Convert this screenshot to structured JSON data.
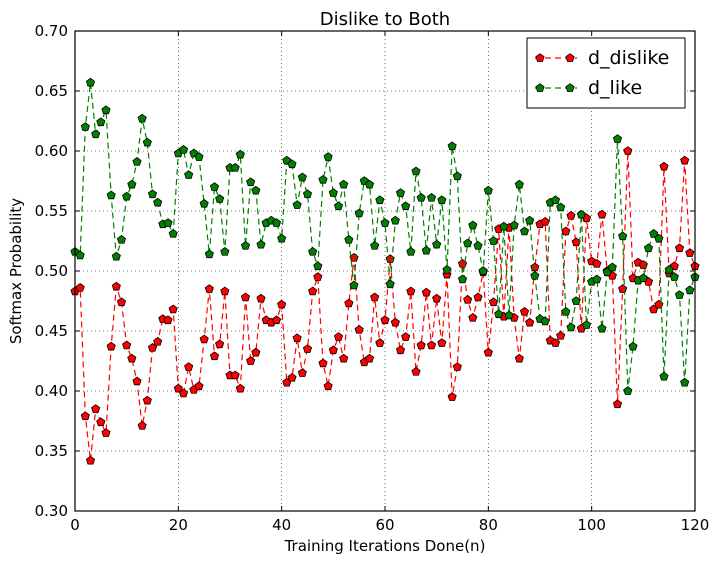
{
  "chart_data": {
    "type": "line",
    "title": "Dislike to Both",
    "xlabel": "Training Iterations Done(n)",
    "ylabel": "Softmax Probability",
    "xlim": [
      0,
      120
    ],
    "ylim": [
      0.3,
      0.7
    ],
    "xticks": [
      0,
      20,
      40,
      60,
      80,
      100,
      120
    ],
    "yticks": [
      0.3,
      0.35,
      0.4,
      0.45,
      0.5,
      0.55,
      0.6,
      0.65,
      0.7
    ],
    "xtick_labels": [
      "0",
      "20",
      "40",
      "60",
      "80",
      "100",
      "120"
    ],
    "ytick_labels": [
      "0.30",
      "0.35",
      "0.40",
      "0.45",
      "0.50",
      "0.55",
      "0.60",
      "0.65",
      "0.70"
    ],
    "grid": true,
    "legend_position": "top-right",
    "series": [
      {
        "name": "d_dislike",
        "color": "#ff0000",
        "marker": "pentagon",
        "linestyle": "dashed",
        "x": [
          0,
          1,
          2,
          3,
          4,
          5,
          6,
          7,
          8,
          9,
          10,
          11,
          12,
          13,
          14,
          15,
          16,
          17,
          18,
          19,
          20,
          21,
          22,
          23,
          24,
          25,
          26,
          27,
          28,
          29,
          30,
          31,
          32,
          33,
          34,
          35,
          36,
          37,
          38,
          39,
          40,
          41,
          42,
          43,
          44,
          45,
          46,
          47,
          48,
          49,
          50,
          51,
          52,
          53,
          54,
          55,
          56,
          57,
          58,
          59,
          60,
          61,
          62,
          63,
          64,
          65,
          66,
          67,
          68,
          69,
          70,
          71,
          72,
          73,
          74,
          75,
          76,
          77,
          78,
          79,
          80,
          81,
          82,
          83,
          84,
          85,
          86,
          87,
          88,
          89,
          90,
          91,
          92,
          93,
          94,
          95,
          96,
          97,
          98,
          99,
          100,
          101,
          102,
          103,
          104,
          105,
          106,
          107,
          108,
          109,
          110,
          111,
          112,
          113,
          114,
          115,
          116,
          117,
          118,
          119,
          120
        ],
        "values": [
          0.483,
          0.486,
          0.379,
          0.342,
          0.385,
          0.374,
          0.365,
          0.437,
          0.487,
          0.474,
          0.438,
          0.427,
          0.408,
          0.371,
          0.392,
          0.436,
          0.441,
          0.46,
          0.459,
          0.468,
          0.402,
          0.398,
          0.42,
          0.401,
          0.404,
          0.443,
          0.485,
          0.429,
          0.439,
          0.483,
          0.413,
          0.413,
          0.402,
          0.478,
          0.425,
          0.432,
          0.477,
          0.459,
          0.457,
          0.459,
          0.472,
          0.407,
          0.411,
          0.444,
          0.415,
          0.435,
          0.483,
          0.495,
          0.423,
          0.404,
          0.434,
          0.445,
          0.427,
          0.473,
          0.511,
          0.451,
          0.424,
          0.427,
          0.478,
          0.44,
          0.459,
          0.51,
          0.457,
          0.434,
          0.445,
          0.483,
          0.416,
          0.438,
          0.482,
          0.438,
          0.477,
          0.44,
          0.497,
          0.395,
          0.42,
          0.506,
          0.476,
          0.461,
          0.478,
          0.499,
          0.432,
          0.474,
          0.535,
          0.462,
          0.536,
          0.461,
          0.427,
          0.466,
          0.457,
          0.503,
          0.539,
          0.541,
          0.442,
          0.44,
          0.446,
          0.533,
          0.546,
          0.524,
          0.452,
          0.544,
          0.508,
          0.506,
          0.547,
          0.5,
          0.496,
          0.389,
          0.485,
          0.6,
          0.494,
          0.507,
          0.505,
          0.491,
          0.468,
          0.472,
          0.587,
          0.498,
          0.504,
          0.519,
          0.592,
          0.515,
          0.504
        ]
      },
      {
        "name": "d_like",
        "color": "#008000",
        "marker": "pentagon",
        "linestyle": "dashed",
        "x": [
          0,
          1,
          2,
          3,
          4,
          5,
          6,
          7,
          8,
          9,
          10,
          11,
          12,
          13,
          14,
          15,
          16,
          17,
          18,
          19,
          20,
          21,
          22,
          23,
          24,
          25,
          26,
          27,
          28,
          29,
          30,
          31,
          32,
          33,
          34,
          35,
          36,
          37,
          38,
          39,
          40,
          41,
          42,
          43,
          44,
          45,
          46,
          47,
          48,
          49,
          50,
          51,
          52,
          53,
          54,
          55,
          56,
          57,
          58,
          59,
          60,
          61,
          62,
          63,
          64,
          65,
          66,
          67,
          68,
          69,
          70,
          71,
          72,
          73,
          74,
          75,
          76,
          77,
          78,
          79,
          80,
          81,
          82,
          83,
          84,
          85,
          86,
          87,
          88,
          89,
          90,
          91,
          92,
          93,
          94,
          95,
          96,
          97,
          98,
          99,
          100,
          101,
          102,
          103,
          104,
          105,
          106,
          107,
          108,
          109,
          110,
          111,
          112,
          113,
          114,
          115,
          116,
          117,
          118,
          119,
          120
        ],
        "values": [
          0.516,
          0.513,
          0.62,
          0.657,
          0.614,
          0.624,
          0.634,
          0.563,
          0.512,
          0.526,
          0.562,
          0.572,
          0.591,
          0.627,
          0.607,
          0.564,
          0.557,
          0.539,
          0.54,
          0.531,
          0.598,
          0.601,
          0.58,
          0.598,
          0.595,
          0.556,
          0.514,
          0.57,
          0.56,
          0.516,
          0.586,
          0.586,
          0.597,
          0.521,
          0.574,
          0.567,
          0.522,
          0.54,
          0.542,
          0.54,
          0.527,
          0.592,
          0.589,
          0.555,
          0.578,
          0.564,
          0.516,
          0.504,
          0.576,
          0.595,
          0.565,
          0.554,
          0.572,
          0.526,
          0.488,
          0.548,
          0.575,
          0.572,
          0.521,
          0.559,
          0.54,
          0.489,
          0.542,
          0.565,
          0.554,
          0.516,
          0.583,
          0.561,
          0.517,
          0.561,
          0.522,
          0.559,
          0.501,
          0.604,
          0.579,
          0.493,
          0.523,
          0.538,
          0.521,
          0.5,
          0.567,
          0.525,
          0.464,
          0.537,
          0.463,
          0.538,
          0.572,
          0.533,
          0.542,
          0.496,
          0.46,
          0.458,
          0.557,
          0.559,
          0.553,
          0.466,
          0.453,
          0.475,
          0.547,
          0.455,
          0.491,
          0.493,
          0.452,
          0.499,
          0.503,
          0.61,
          0.529,
          0.4,
          0.437,
          0.492,
          0.494,
          0.519,
          0.531,
          0.527,
          0.412,
          0.501,
          0.495,
          0.48,
          0.407,
          0.484,
          0.495
        ]
      }
    ]
  }
}
